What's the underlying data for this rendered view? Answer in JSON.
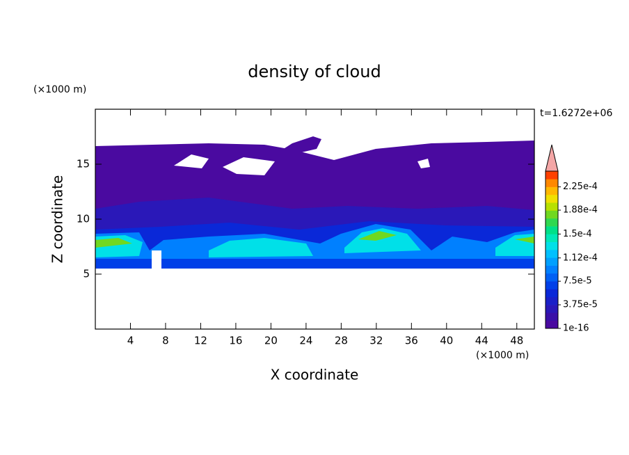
{
  "chart_data": {
    "type": "contour",
    "title": "density of cloud",
    "x_label": "X coordinate",
    "y_label": "Z coordinate",
    "x_unit": "(×1000 m)",
    "y_unit": "(×1000 m)",
    "time_label": "t=1.6272e+06",
    "xlim": [
      0,
      50
    ],
    "xticks": [
      4,
      8,
      12,
      16,
      20,
      24,
      28,
      32,
      36,
      40,
      44,
      48
    ],
    "ylim": [
      0,
      20
    ],
    "yticks": [
      5,
      10,
      15
    ],
    "colorbar": {
      "range": [
        1e-16,
        0.00025
      ],
      "colors": [
        "#4a0aa0",
        "#3a10a8",
        "#2a18b8",
        "#1a20c8",
        "#0a28d8",
        "#0040e8",
        "#0060f4",
        "#0080ff",
        "#00a0ff",
        "#00c0ff",
        "#00e0e8",
        "#00e8b8",
        "#00e088",
        "#30d850",
        "#70d820",
        "#b8e000",
        "#f0e000",
        "#ffb800",
        "#ff8800",
        "#ff4000"
      ],
      "extend_color": "#f4a6a6",
      "ticks": [
        1e-16,
        {
          "value": 3.75e-05,
          "label": "3.75e-5"
        },
        {
          "value": 7.5e-05,
          "label": "7.5e-5"
        },
        {
          "value": 0.000112,
          "label": "1.12e-4"
        },
        {
          "value": 0.00015,
          "label": "1.5e-4"
        },
        {
          "value": 0.000188,
          "label": "1.88e-4"
        },
        {
          "value": 0.000225,
          "label": "2.25e-4"
        }
      ]
    }
  }
}
